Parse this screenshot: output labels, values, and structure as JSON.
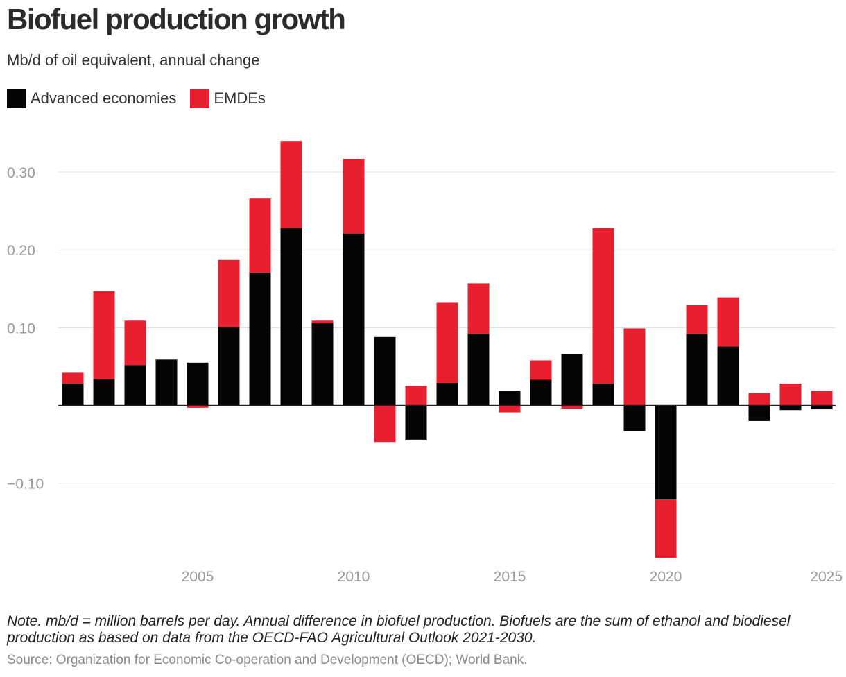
{
  "title": "Biofuel production growth",
  "subtitle": "Mb/d of oil equivalent, annual change",
  "legend": [
    {
      "label": "Advanced economies",
      "color": "#050505"
    },
    {
      "label": "EMDEs",
      "color": "#e81f2f"
    }
  ],
  "note": "Note. mb/d = million barrels per day. Annual difference in biofuel production. Biofuels are the sum of ethanol and biodiesel production as based on data from the OECD-FAO Agricultural Outlook 2021-2030.",
  "source": "Source: Organization for Economic Co-operation and Development (OECD); World Bank.",
  "chart_data": {
    "type": "bar",
    "stacked": true,
    "x": [
      2001,
      2002,
      2003,
      2004,
      2005,
      2006,
      2007,
      2008,
      2009,
      2010,
      2011,
      2012,
      2013,
      2014,
      2015,
      2016,
      2017,
      2018,
      2019,
      2020,
      2021,
      2022,
      2023,
      2024,
      2025
    ],
    "series": [
      {
        "name": "Advanced economies",
        "color": "#050505",
        "values": [
          0.028,
          0.034,
          0.052,
          0.059,
          0.055,
          0.101,
          0.171,
          0.228,
          0.106,
          0.221,
          0.088,
          -0.044,
          0.029,
          0.092,
          0.019,
          0.033,
          0.066,
          0.028,
          -0.033,
          -0.121,
          0.092,
          0.076,
          -0.02,
          -0.006,
          -0.005
        ]
      },
      {
        "name": "EMDEs",
        "color": "#e81f2f",
        "values": [
          0.014,
          0.113,
          0.057,
          0.0,
          -0.003,
          0.086,
          0.095,
          0.112,
          0.003,
          0.096,
          -0.047,
          0.025,
          0.103,
          0.065,
          -0.009,
          0.025,
          -0.004,
          0.2,
          0.099,
          -0.075,
          0.037,
          0.063,
          0.016,
          0.028,
          0.019
        ]
      }
    ],
    "yticks": [
      -0.1,
      0.1,
      0.2,
      0.3
    ],
    "ytick_labels": [
      "−0.10",
      "0.10",
      "0.20",
      "0.30"
    ],
    "xticks": [
      2005,
      2010,
      2015,
      2020,
      2025
    ],
    "ylim": [
      -0.2,
      0.34
    ],
    "grid": true,
    "legend_position": "top-left"
  }
}
